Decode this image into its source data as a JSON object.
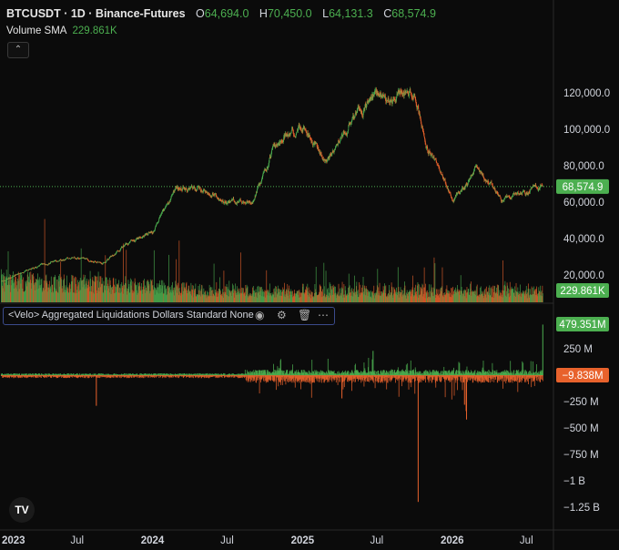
{
  "header": {
    "symbol": "BTCUSDT · 1D · Binance-Futures",
    "open_label": "O",
    "open": "64,694.0",
    "high_label": "H",
    "high": "70,450.0",
    "low_label": "L",
    "low": "64,131.3",
    "close_label": "C",
    "close": "68,574.9"
  },
  "volume_sma": {
    "label": "Volume SMA",
    "value": "229.861K"
  },
  "price_axis": [
    "120,000.0",
    "100,000.0",
    "80,000.0",
    "60,000.0",
    "40,000.0",
    "20,000.0"
  ],
  "last_price_label": "68,574.9",
  "volume_label": "229.861K",
  "indicator": {
    "label": "<Velo> Aggregated Liquidations Dollars Standard None",
    "icons": [
      "eye-icon",
      "settings-icon",
      "trash-icon",
      "more-icon"
    ]
  },
  "liq_axis": [
    "250 M",
    "−250 M",
    "−500 M",
    "−750 M",
    "−1 B",
    "−1.25 B"
  ],
  "liq_high_label": "479.351M",
  "liq_low_label": "−9.838M",
  "time_axis": [
    "2023",
    "Jul",
    "2024",
    "Jul",
    "2025",
    "Jul",
    "2026",
    "Jul"
  ],
  "colors": {
    "up": "#4caf50",
    "down": "#e8622c",
    "background": "#0b0b0b",
    "grid": "#1c1c1c",
    "text": "#d1d4dc",
    "accent_border": "#3b4b8c"
  },
  "chart_data": {
    "type": "line",
    "title": "BTCUSDT · 1D · Binance-Futures",
    "x": [
      "2023-01",
      "2023-03",
      "2023-05",
      "2023-07",
      "2023-09",
      "2023-11",
      "2024-01",
      "2024-03",
      "2024-05",
      "2024-07",
      "2024-09",
      "2024-11",
      "2025-01",
      "2025-03",
      "2025-05",
      "2025-07",
      "2025-08",
      "2025-10",
      "2025-11",
      "2026-01",
      "2026-02",
      "2026-03",
      "2026-05",
      "2026-06",
      "2026-08"
    ],
    "series": [
      {
        "name": "BTCUSDT",
        "values": [
          16500,
          23000,
          27000,
          29500,
          26500,
          37000,
          43000,
          68000,
          67000,
          60000,
          61000,
          95000,
          102000,
          83000,
          104000,
          118000,
          115000,
          122000,
          90000,
          62000,
          68000,
          80000,
          60000,
          64000,
          68574.9
        ]
      }
    ],
    "ylim": [
      0,
      130000
    ],
    "liquidations_ylim": [
      -1400000000,
      500000000
    ]
  }
}
